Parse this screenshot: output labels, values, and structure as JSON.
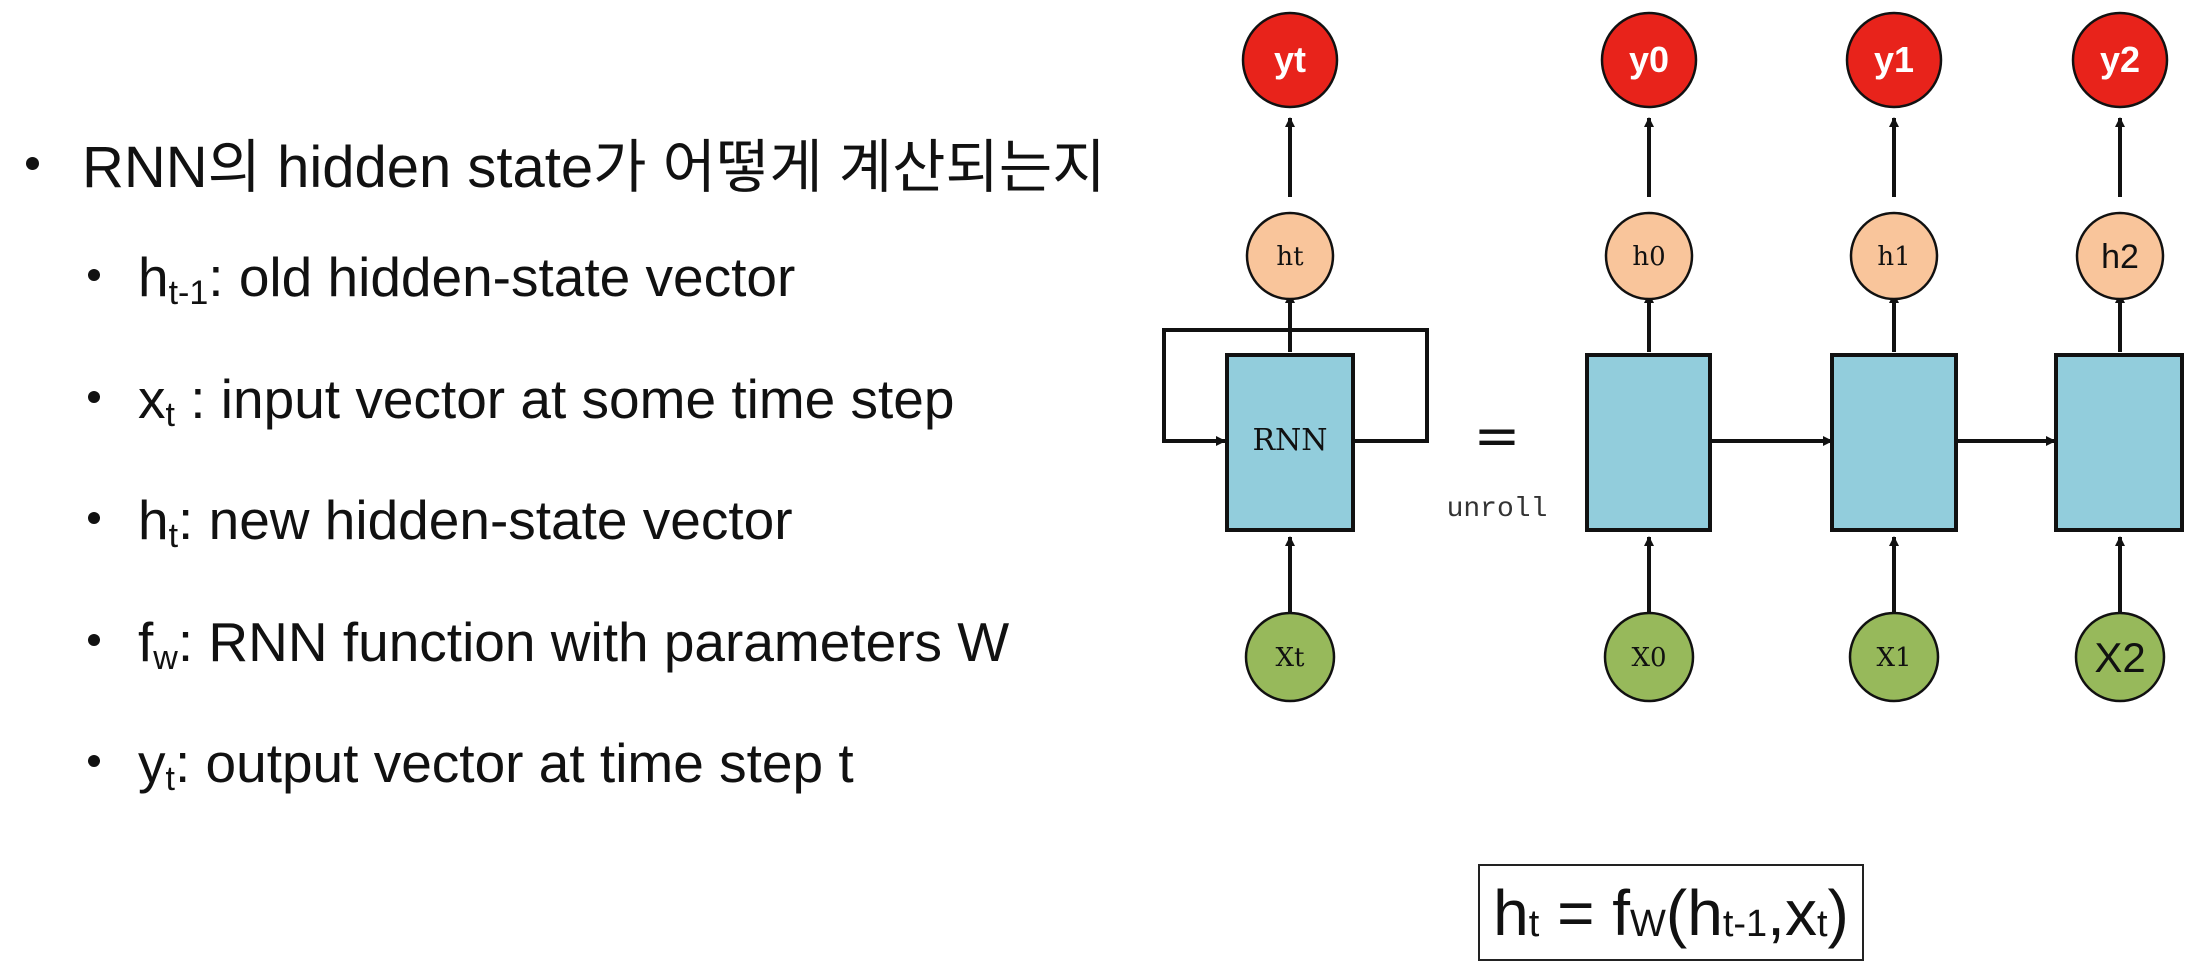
{
  "bullets": {
    "main": "RNN의 hidden state가 어떻게 계산되는지",
    "items": [
      {
        "sym": "h",
        "sub": "t-1",
        "text": ": old hidden-state vector"
      },
      {
        "sym": "x",
        "sub": "t",
        "text": " : input vector at some time step"
      },
      {
        "sym": "h",
        "sub": "t",
        "text": ": new hidden-state vector"
      },
      {
        "sym": "f",
        "sub": "w",
        "text": ": RNN function with parameters W"
      },
      {
        "sym": "y",
        "sub": "t",
        "text": ": output vector at time step t"
      }
    ]
  },
  "diagram": {
    "rolled": {
      "cell": "RNN",
      "hidden": "ht",
      "input": "Xt",
      "output": "yt"
    },
    "equals": "=",
    "unroll_label": "unroll",
    "steps": [
      {
        "hidden": "h0",
        "input": "X0",
        "output": "y0"
      },
      {
        "hidden": "h1",
        "input": "X1",
        "output": "y1"
      },
      {
        "hidden": "h2",
        "input": "X2",
        "output": "y2"
      }
    ],
    "colors": {
      "output": "#e8231b",
      "hidden": "#f9c59b",
      "input": "#97b95b",
      "cell": "#92cddc",
      "stroke": "#111111"
    }
  },
  "formula": {
    "lhs": "h",
    "lhs_sub": "t",
    "eq": " = ",
    "f": "f",
    "f_sub": "W",
    "open": "(",
    "a": "h",
    "a_sub": "t-1",
    "comma": ",",
    "b": "x",
    "b_sub": "t",
    "close": ")"
  }
}
